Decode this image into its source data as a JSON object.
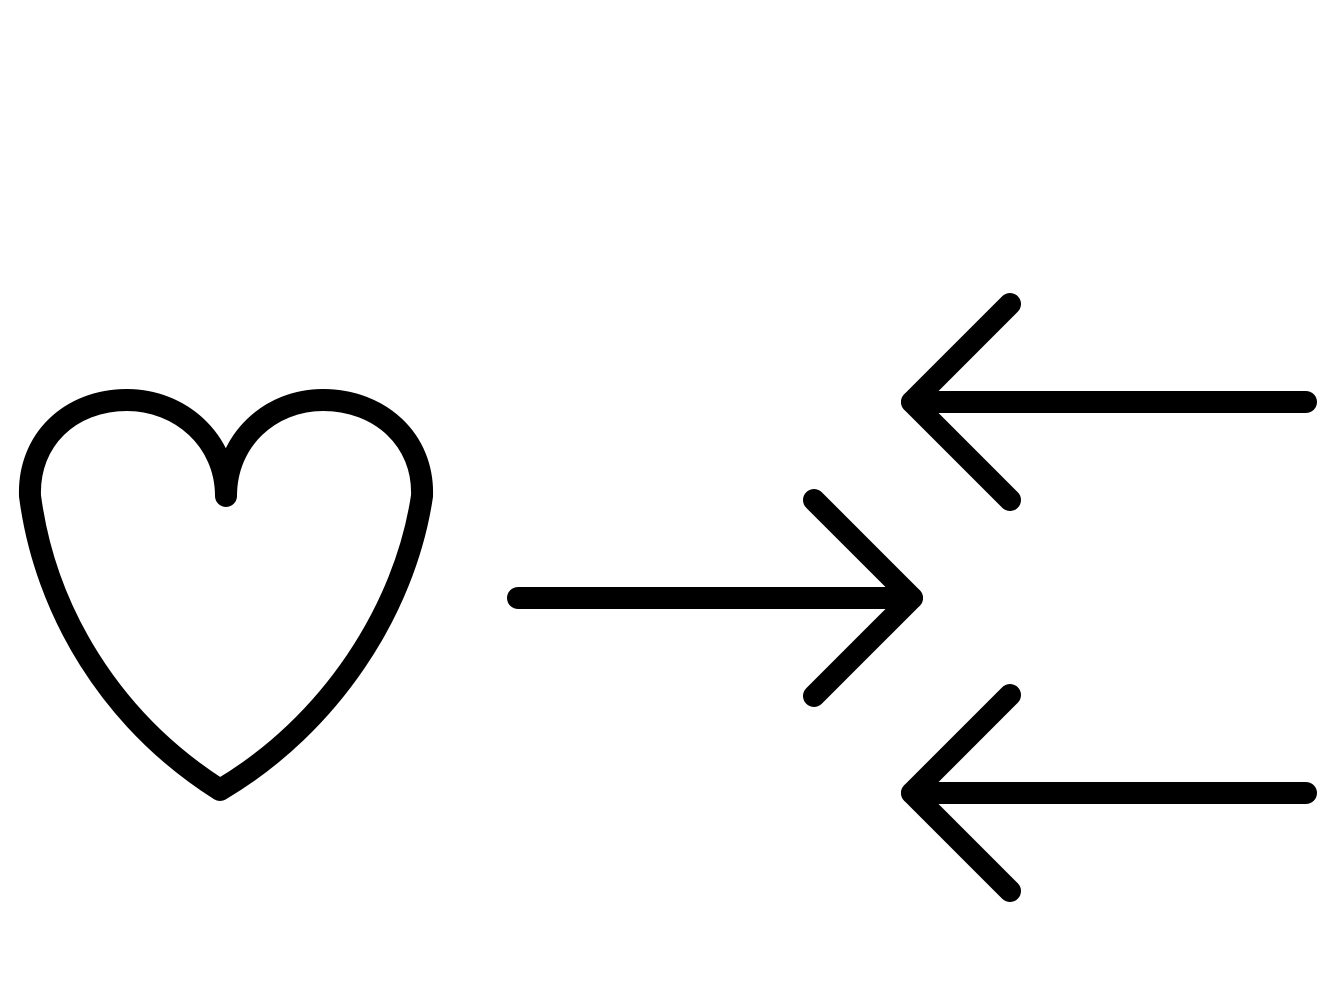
{
  "figure": {
    "background": "#ffffff",
    "stroke_color": "#000000",
    "symbols": [
      {
        "icon": "heart-outline-icon"
      },
      {
        "icon": "arrow-right-icon"
      },
      {
        "icon": "arrow-left-icon"
      },
      {
        "icon": "arrow-left-icon"
      }
    ]
  }
}
